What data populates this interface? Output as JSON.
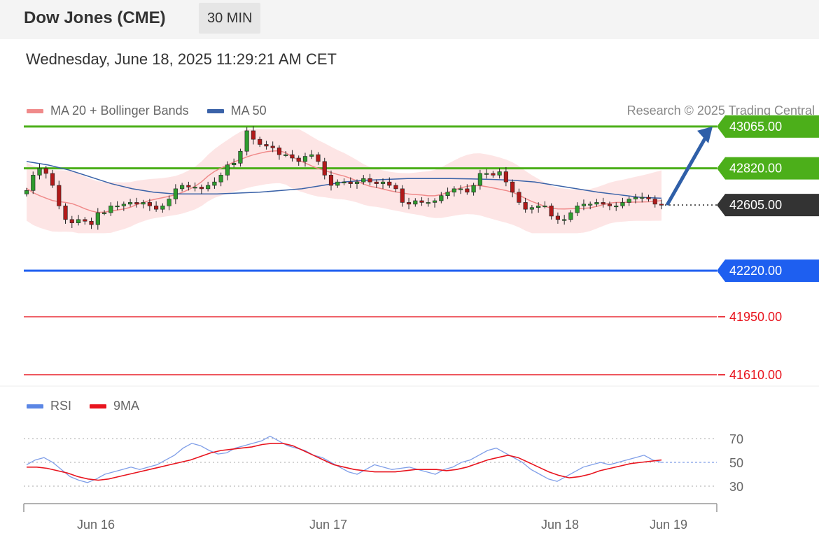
{
  "header": {
    "title": "Dow Jones (CME)",
    "timeframe": "30 MIN"
  },
  "datetime": "Wednesday, June 18, 2025 11:29:21 AM CET",
  "legend": {
    "items": [
      {
        "label": "MA 20 + Bollinger Bands",
        "color": "#f08a8a"
      },
      {
        "label": "MA 50",
        "color": "#3a62a8"
      }
    ],
    "credit": "Research © 2025 Trading Central"
  },
  "rsi_legend": {
    "items": [
      {
        "label": "RSI",
        "color": "#5b86e5"
      },
      {
        "label": "9MA",
        "color": "#e8141e"
      }
    ]
  },
  "chart_data": [
    {
      "type": "candlestick",
      "x_ticks": [
        "Jun 16",
        "Jun 17",
        "Jun 18",
        "Jun 19"
      ],
      "ylim": [
        41560,
        43130
      ],
      "current_price": 42605.0,
      "levels": [
        {
          "label": "43065.00",
          "value": 43065.0,
          "kind": "resistance",
          "color": "#4caf1a"
        },
        {
          "label": "42820.00",
          "value": 42820.0,
          "kind": "resistance",
          "color": "#4caf1a"
        },
        {
          "label": "42605.00",
          "value": 42605.0,
          "kind": "last-price",
          "color": "#333333"
        },
        {
          "label": "42220.00",
          "value": 42220.0,
          "kind": "pivot",
          "color": "#1e5ff0"
        },
        {
          "label": "41950.00",
          "value": 41950.0,
          "kind": "support",
          "color": "#e8141e"
        },
        {
          "label": "41610.00",
          "value": 41610.0,
          "kind": "support",
          "color": "#e8141e"
        }
      ],
      "close_series": [
        42690,
        42780,
        42820,
        42790,
        42720,
        42600,
        42520,
        42500,
        42520,
        42510,
        42490,
        42560,
        42560,
        42600,
        42600,
        42610,
        42620,
        42610,
        42620,
        42600,
        42580,
        42600,
        42640,
        42700,
        42720,
        42710,
        42710,
        42700,
        42720,
        42740,
        42780,
        42840,
        42850,
        42920,
        43040,
        42990,
        42960,
        42950,
        42940,
        42900,
        42900,
        42880,
        42860,
        42890,
        42900,
        42860,
        42780,
        42720,
        42740,
        42740,
        42730,
        42740,
        42760,
        42740,
        42730,
        42740,
        42720,
        42700,
        42620,
        42610,
        42630,
        42620,
        42620,
        42630,
        42660,
        42680,
        42700,
        42700,
        42680,
        42720,
        42790,
        42790,
        42780,
        42800,
        42740,
        42680,
        42620,
        42580,
        42590,
        42600,
        42600,
        42540,
        42520,
        42520,
        42560,
        42600,
        42610,
        42610,
        42620,
        42610,
        42600,
        42600,
        42620,
        42640,
        42650,
        42650,
        42640,
        42610,
        42605
      ],
      "ma20": [
        42680,
        42650,
        42630,
        42600,
        42590,
        42580,
        42570,
        42565,
        42570,
        42580,
        42590,
        42600,
        42620,
        42640,
        42660,
        42690,
        42720,
        42770,
        42810,
        42840,
        42850,
        42840,
        42830,
        42810,
        42790,
        42770,
        42760,
        42750,
        42740,
        42730,
        42720,
        42705,
        42690,
        42680,
        42670,
        42660,
        42650,
        42640,
        42630,
        42625,
        42620,
        42625,
        42630,
        42640,
        42660,
        42680,
        42690,
        42680,
        42660,
        42640,
        42620,
        42600,
        42590,
        42595,
        42600,
        42605,
        42610,
        42615,
        42620,
        42625
      ],
      "ma50": [
        42860,
        42840,
        42810,
        42770,
        42730,
        42700,
        42680,
        42670,
        42670,
        42670,
        42675,
        42680,
        42690,
        42700,
        42720,
        42740,
        42750,
        42755,
        42760,
        42760,
        42760,
        42758,
        42755,
        42750,
        42740,
        42720,
        42700,
        42680,
        42665,
        42650,
        42645
      ],
      "bollinger": {
        "upper_max": 43050,
        "lower_min": 42440
      }
    },
    {
      "type": "line",
      "name": "RSI panel",
      "ylim": [
        20,
        80
      ],
      "y_ticks": [
        "70",
        "50",
        "30"
      ],
      "series": [
        {
          "name": "RSI",
          "values": [
            48,
            52,
            54,
            50,
            44,
            38,
            35,
            33,
            36,
            40,
            42,
            44,
            46,
            44,
            46,
            48,
            52,
            56,
            62,
            66,
            64,
            60,
            57,
            58,
            62,
            64,
            66,
            68,
            72,
            68,
            64,
            62,
            60,
            56,
            54,
            50,
            46,
            42,
            40,
            44,
            48,
            46,
            44,
            45,
            46,
            44,
            42,
            40,
            44,
            46,
            50,
            52,
            56,
            60,
            62,
            58,
            54,
            50,
            44,
            40,
            36,
            34,
            38,
            42,
            46,
            48,
            50,
            48,
            50,
            52,
            54,
            56,
            52,
            50
          ]
        },
        {
          "name": "9MA",
          "values": [
            46,
            46,
            45,
            43,
            41,
            38,
            36,
            35,
            36,
            38,
            40,
            42,
            44,
            46,
            48,
            50,
            52,
            55,
            58,
            60,
            61,
            62,
            63,
            65,
            66,
            66,
            64,
            60,
            56,
            52,
            48,
            46,
            44,
            43,
            42,
            42,
            42,
            43,
            44,
            44,
            44,
            43,
            44,
            46,
            49,
            52,
            54,
            56,
            54,
            50,
            46,
            42,
            39,
            37,
            38,
            40,
            43,
            45,
            47,
            49,
            50,
            51,
            52
          ]
        }
      ]
    }
  ]
}
